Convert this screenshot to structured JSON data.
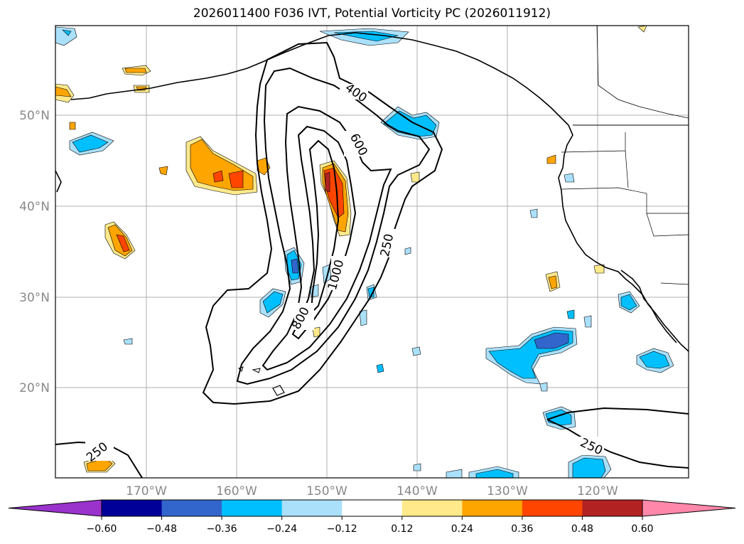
{
  "title": "2026011400 F036 IVT, Potential Vorticity PC (2026011912)",
  "map": {
    "lon_labels": [
      "170°W",
      "160°W",
      "150°W",
      "140°W",
      "130°W",
      "120°W"
    ],
    "lat_labels": [
      "50°N",
      "40°N",
      "30°N",
      "20°N"
    ],
    "ivt_contour_labels": [
      "400",
      "600",
      "250",
      "1000",
      "800",
      "250",
      "250"
    ],
    "label_color": "#888888"
  },
  "colorbar": {
    "ticks": [
      "−0.60",
      "−0.48",
      "−0.36",
      "−0.24",
      "−0.12",
      "0.12",
      "0.24",
      "0.36",
      "0.48",
      "0.60"
    ],
    "colors": [
      "#9933cc",
      "#000099",
      "#3366cc",
      "#00bfff",
      "#aae0fa",
      "#ffffff",
      "#ffe98a",
      "#ffa500",
      "#ff4500",
      "#b22222",
      "#ff88aa"
    ]
  }
}
